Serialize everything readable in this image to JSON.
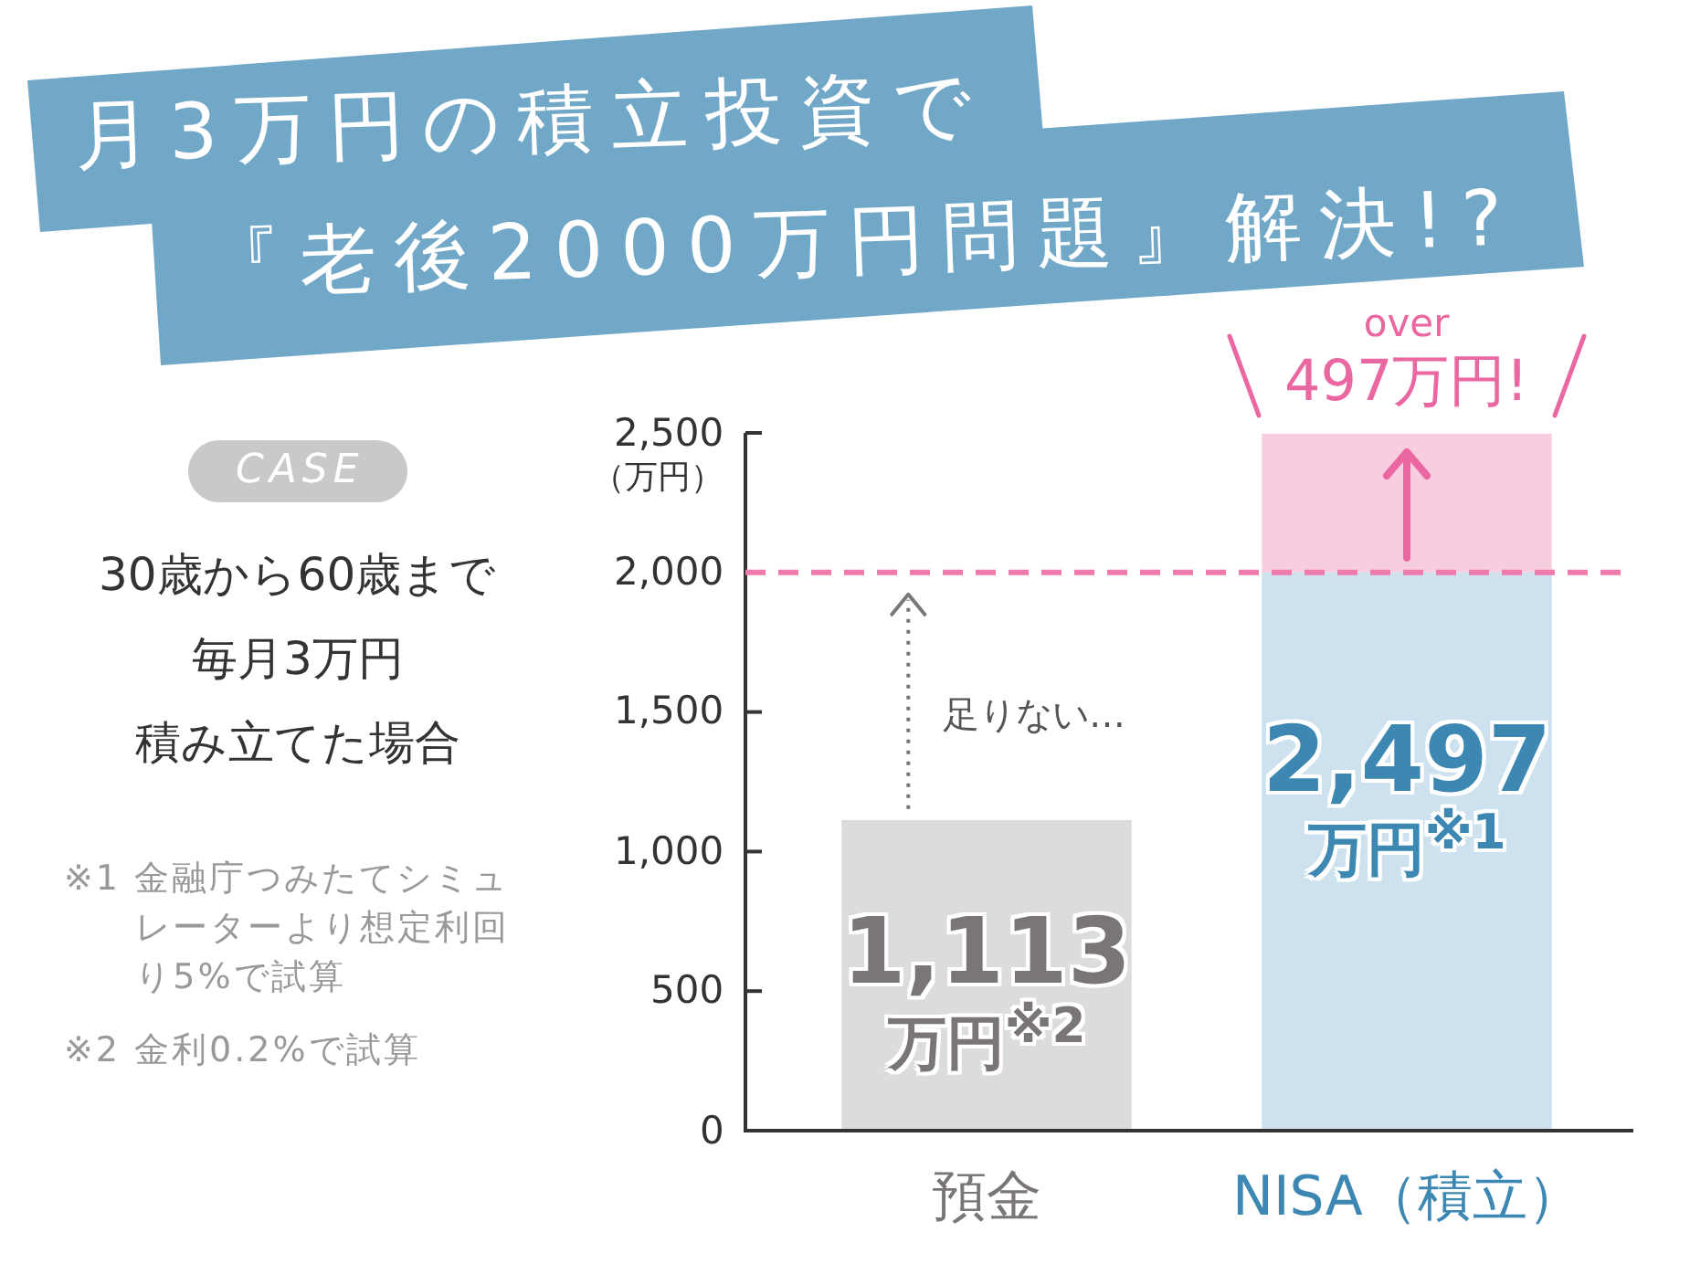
{
  "chart_data": {
    "type": "bar",
    "title": "月3万円の積立投資で",
    "subtitle": "『老後2000万円問題』解決!?",
    "ylabel": "（万円）",
    "categories": [
      "預金",
      "NISA（積立）"
    ],
    "stacked": true,
    "series": [
      {
        "values": [
          1113,
          2000
        ],
        "colors": [
          "#dddcdc",
          "#cde2ee"
        ]
      },
      {
        "values": [
          null,
          497
        ],
        "color": "#f8cde0",
        "value_labels": [
          null,
          "over\n497万円!"
        ]
      }
    ],
    "totals": [
      "1,113\n万円$^{※2}$",
      "2,497\n万円$^{※1}$"
    ],
    "ylim": [
      0,
      2500
    ],
    "yticks": [
      0,
      500,
      {
        "value": 1000,
        "label": "1,000"
      },
      {
        "value": 1500,
        "label": "1,500"
      },
      {
        "value": 2000,
        "label": "2,000"
      },
      {
        "value": 2500,
        "label": "2,500"
      }
    ],
    "ref_lines": [
      {
        "axis": "y",
        "value": 2000,
        "color": "#ee7bab",
        "line_style": "dashed"
      }
    ],
    "annotations": [
      "CASE",
      "30歳から60歳まで",
      "毎月3万円",
      "積み立てた場合",
      "※1 金融庁つみたてシミュレーターより想定利回り5%で試算",
      "※2 金利0.2%で試算",
      "足りない…"
    ]
  }
}
